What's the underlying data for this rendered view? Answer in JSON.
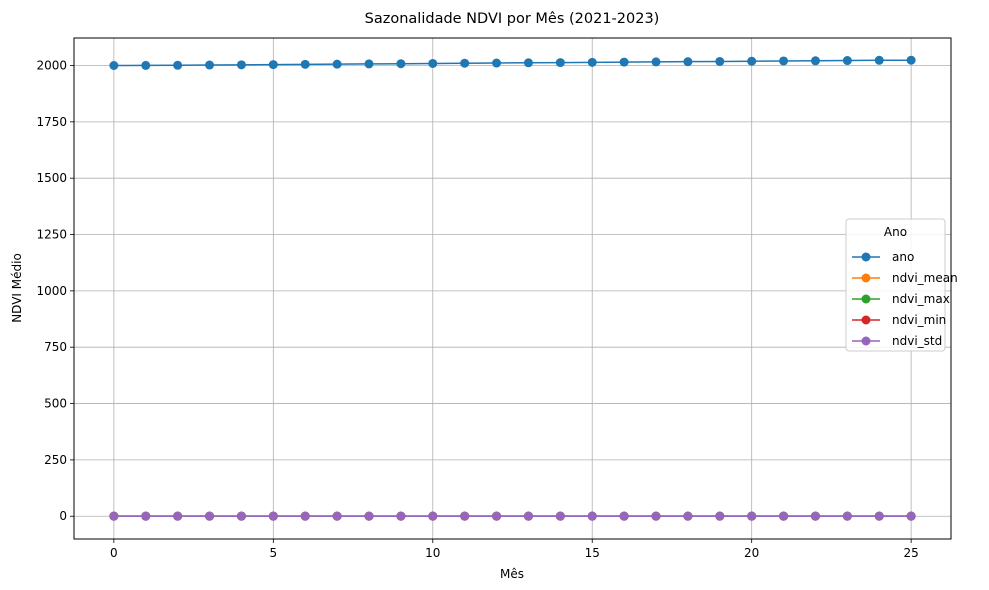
{
  "chart_data": {
    "type": "line",
    "title": "Sazonalidade NDVI por Mês (2021-2023)",
    "xlabel": "Mês",
    "ylabel": "NDVI Médio",
    "xlim": [
      -1.25,
      26.25
    ],
    "ylim": [
      -101,
      2122
    ],
    "xticks": [
      0,
      5,
      10,
      15,
      20,
      25
    ],
    "yticks": [
      0,
      250,
      500,
      750,
      1000,
      1250,
      1500,
      1750,
      2000
    ],
    "grid": true,
    "legend": {
      "title": "Ano",
      "placement": "center-right"
    },
    "x": [
      0,
      1,
      2,
      3,
      4,
      5,
      6,
      7,
      8,
      9,
      10,
      11,
      12,
      13,
      14,
      15,
      16,
      17,
      18,
      19,
      20,
      21,
      22,
      23,
      24,
      25
    ],
    "series": [
      {
        "name": "ano",
        "color": "#1f77b4",
        "values": [
          2000,
          2000.5,
          2001,
          2002,
          2003,
          2004,
          2005,
          2006,
          2007,
          2008,
          2009,
          2010,
          2011,
          2012,
          2013,
          2014,
          2015,
          2016,
          2017,
          2018,
          2019,
          2020,
          2021,
          2022,
          2023,
          2023.5
        ]
      },
      {
        "name": "ndvi_mean",
        "color": "#ff7f0e",
        "values": [
          0.4,
          0.4,
          0.4,
          0.4,
          0.4,
          0.4,
          0.4,
          0.4,
          0.4,
          0.4,
          0.4,
          0.4,
          0.4,
          0.4,
          0.4,
          0.4,
          0.4,
          0.4,
          0.4,
          0.4,
          0.4,
          0.4,
          0.4,
          0.4,
          0.4,
          0.4
        ]
      },
      {
        "name": "ndvi_max",
        "color": "#2ca02c",
        "values": [
          0.8,
          0.8,
          0.8,
          0.8,
          0.8,
          0.8,
          0.8,
          0.8,
          0.8,
          0.8,
          0.8,
          0.8,
          0.8,
          0.8,
          0.8,
          0.8,
          0.8,
          0.8,
          0.8,
          0.8,
          0.8,
          0.8,
          0.8,
          0.8,
          0.8,
          0.8
        ]
      },
      {
        "name": "ndvi_min",
        "color": "#d62728",
        "values": [
          0.1,
          0.1,
          0.1,
          0.1,
          0.1,
          0.1,
          0.1,
          0.1,
          0.1,
          0.1,
          0.1,
          0.1,
          0.1,
          0.1,
          0.1,
          0.1,
          0.1,
          0.1,
          0.1,
          0.1,
          0.1,
          0.1,
          0.1,
          0.1,
          0.1,
          0.1
        ]
      },
      {
        "name": "ndvi_std",
        "color": "#9467bd",
        "values": [
          0.1,
          0.1,
          0.1,
          0.1,
          0.1,
          0.1,
          0.1,
          0.1,
          0.1,
          0.1,
          0.1,
          0.1,
          0.1,
          0.1,
          0.1,
          0.1,
          0.1,
          0.1,
          0.1,
          0.1,
          0.1,
          0.1,
          0.1,
          0.1,
          0.1,
          0.1
        ]
      }
    ]
  }
}
